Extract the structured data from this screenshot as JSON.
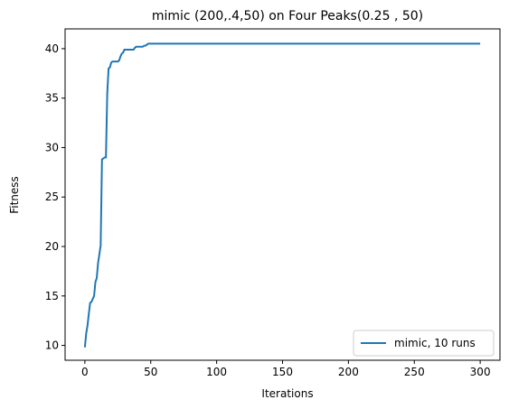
{
  "chart_data": {
    "type": "line",
    "title": "mimic (200,.4,50) on Four Peaks(0.25 , 50)",
    "xlabel": "Iterations",
    "ylabel": "Fitness",
    "xlim": [
      -15,
      315
    ],
    "ylim": [
      8.5,
      42
    ],
    "xticks": [
      0,
      50,
      100,
      150,
      200,
      250,
      300
    ],
    "yticks": [
      10,
      15,
      20,
      25,
      30,
      35,
      40
    ],
    "grid": false,
    "legend_position": "lower-right",
    "series": [
      {
        "name": "mimic, 10 runs",
        "color": "#1f77b4",
        "x": [
          0,
          1,
          2,
          3,
          4,
          5,
          6,
          7,
          8,
          9,
          10,
          11,
          12,
          13,
          14,
          15,
          16,
          17,
          18,
          19,
          20,
          21,
          22,
          23,
          24,
          25,
          26,
          27,
          28,
          29,
          30,
          31,
          32,
          33,
          34,
          35,
          36,
          37,
          38,
          39,
          40,
          41,
          42,
          43,
          44,
          45,
          46,
          47,
          48,
          49,
          50,
          51,
          52,
          60,
          100,
          150,
          200,
          250,
          300
        ],
        "y": [
          9.8,
          11.2,
          12.0,
          13.2,
          14.3,
          14.4,
          14.7,
          15.0,
          16.4,
          16.8,
          18.3,
          19.2,
          20.1,
          28.8,
          28.9,
          29.0,
          29.0,
          35.5,
          38.0,
          38.1,
          38.6,
          38.7,
          38.7,
          38.7,
          38.7,
          38.7,
          38.8,
          39.2,
          39.5,
          39.6,
          39.9,
          39.9,
          39.9,
          39.9,
          39.9,
          39.9,
          39.9,
          39.9,
          40.1,
          40.2,
          40.2,
          40.2,
          40.2,
          40.2,
          40.2,
          40.3,
          40.3,
          40.4,
          40.5,
          40.5,
          40.5,
          40.5,
          40.5,
          40.5,
          40.5,
          40.5,
          40.5,
          40.5,
          40.5
        ]
      }
    ]
  }
}
